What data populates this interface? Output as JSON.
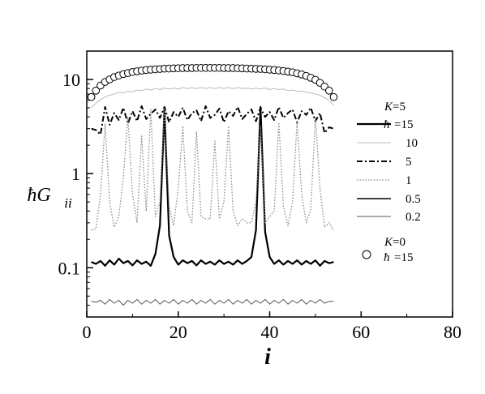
{
  "chart_data": {
    "type": "line",
    "xlabel": "i",
    "ylabel": "ħG",
    "ylabel_sub": "ii",
    "xlim": [
      0,
      80
    ],
    "ylim": [
      0.03,
      20
    ],
    "yscale": "log",
    "xticks": [
      0,
      20,
      40,
      60,
      80
    ],
    "xtick_labels": [
      "0",
      "20",
      "40",
      "60",
      "80"
    ],
    "yticks": [
      0.1,
      1,
      10
    ],
    "ytick_labels": [
      "0.1",
      "1",
      "10"
    ],
    "grid": false,
    "legend_title": "K=5",
    "legend_title_italic": "K",
    "legend_title_rest": "=5",
    "legend_hbar_prefix": "ħ",
    "legend_second_title_italic": "K",
    "legend_second_title_rest": "=0",
    "legend_second_label": "=15",
    "series": [
      {
        "name": "=15",
        "legend_label": "=15",
        "style": "solid-thick",
        "color": "#000000",
        "x": [
          1,
          2,
          3,
          4,
          5,
          6,
          7,
          8,
          9,
          10,
          11,
          12,
          13,
          14,
          15,
          16,
          17,
          18,
          19,
          20,
          21,
          22,
          23,
          24,
          25,
          26,
          27,
          28,
          29,
          30,
          31,
          32,
          33,
          34,
          35,
          36,
          37,
          38,
          39,
          40,
          41,
          42,
          43,
          44,
          45,
          46,
          47,
          48,
          49,
          50,
          51,
          52,
          53,
          54
        ],
        "y": [
          0.115,
          0.11,
          0.118,
          0.105,
          0.12,
          0.108,
          0.125,
          0.112,
          0.118,
          0.106,
          0.12,
          0.11,
          0.116,
          0.105,
          0.14,
          0.28,
          4.9,
          0.22,
          0.13,
          0.108,
          0.12,
          0.112,
          0.118,
          0.106,
          0.12,
          0.11,
          0.116,
          0.108,
          0.12,
          0.11,
          0.116,
          0.108,
          0.12,
          0.11,
          0.118,
          0.13,
          0.25,
          5.1,
          0.24,
          0.13,
          0.11,
          0.12,
          0.108,
          0.118,
          0.11,
          0.12,
          0.108,
          0.118,
          0.11,
          0.12,
          0.105,
          0.118,
          0.112,
          0.115
        ]
      },
      {
        "name": "10",
        "legend_label": "10",
        "style": "solid-thin-gray",
        "color": "#bbbbbb",
        "x": [
          1,
          2,
          3,
          4,
          5,
          6,
          7,
          8,
          9,
          10,
          11,
          12,
          13,
          14,
          15,
          16,
          17,
          18,
          19,
          20,
          21,
          22,
          23,
          24,
          25,
          26,
          27,
          28,
          29,
          30,
          31,
          32,
          33,
          34,
          35,
          36,
          37,
          38,
          39,
          40,
          41,
          42,
          43,
          44,
          45,
          46,
          47,
          48,
          49,
          50,
          51,
          52,
          53,
          54
        ],
        "y": [
          5.0,
          5.6,
          6.1,
          6.5,
          6.8,
          7.0,
          7.3,
          7.2,
          7.5,
          7.4,
          7.7,
          7.6,
          7.9,
          7.7,
          8.0,
          7.8,
          8.1,
          7.9,
          8.1,
          7.9,
          8.2,
          8.0,
          8.2,
          8.0,
          8.2,
          8.0,
          8.2,
          8.0,
          8.2,
          8.0,
          8.2,
          8.0,
          8.2,
          8.0,
          8.1,
          7.9,
          8.1,
          7.9,
          8.1,
          7.8,
          8.0,
          7.8,
          7.9,
          7.6,
          7.7,
          7.5,
          7.5,
          7.3,
          7.2,
          7.0,
          6.8,
          6.4,
          6.0,
          5.3
        ]
      },
      {
        "name": "5",
        "legend_label": "5",
        "style": "dashdot",
        "color": "#000000",
        "x": [
          1,
          2,
          3,
          4,
          5,
          6,
          7,
          8,
          9,
          10,
          11,
          12,
          13,
          14,
          15,
          16,
          17,
          18,
          19,
          20,
          21,
          22,
          23,
          24,
          25,
          26,
          27,
          28,
          29,
          30,
          31,
          32,
          33,
          34,
          35,
          36,
          37,
          38,
          39,
          40,
          41,
          42,
          43,
          44,
          45,
          46,
          47,
          48,
          49,
          50,
          51,
          52,
          53,
          54
        ],
        "y": [
          3.0,
          2.9,
          2.6,
          5.1,
          3.3,
          4.4,
          3.7,
          5.0,
          3.4,
          4.6,
          3.6,
          5.2,
          3.8,
          4.3,
          4.8,
          3.9,
          5.1,
          3.5,
          4.5,
          4.0,
          5.0,
          3.7,
          4.4,
          4.7,
          3.6,
          5.2,
          3.9,
          4.2,
          4.9,
          3.5,
          4.6,
          4.1,
          5.1,
          3.8,
          4.3,
          4.8,
          3.6,
          5.0,
          4.0,
          4.5,
          3.7,
          5.1,
          3.9,
          4.4,
          4.8,
          3.5,
          4.6,
          4.2,
          5.0,
          3.6,
          4.4,
          2.7,
          3.1,
          3.0
        ]
      },
      {
        "name": "1",
        "legend_label": "1",
        "style": "dotted",
        "color": "#888888",
        "x": [
          1,
          2,
          3,
          4,
          5,
          6,
          7,
          8,
          9,
          10,
          11,
          12,
          13,
          14,
          15,
          16,
          17,
          18,
          19,
          20,
          21,
          22,
          23,
          24,
          25,
          26,
          27,
          28,
          29,
          30,
          31,
          32,
          33,
          34,
          35,
          36,
          37,
          38,
          39,
          40,
          41,
          42,
          43,
          44,
          45,
          46,
          47,
          48,
          49,
          50,
          51,
          52,
          53,
          54
        ],
        "y": [
          0.25,
          0.26,
          0.6,
          3.4,
          0.5,
          0.27,
          0.35,
          0.9,
          4.0,
          0.6,
          0.3,
          2.5,
          0.4,
          4.8,
          0.35,
          0.5,
          5.0,
          0.45,
          0.28,
          0.7,
          3.2,
          0.4,
          0.3,
          2.8,
          0.35,
          0.33,
          0.33,
          2.2,
          0.33,
          0.5,
          3.2,
          0.4,
          0.28,
          0.33,
          0.3,
          0.3,
          0.5,
          3.2,
          0.3,
          0.35,
          0.4,
          3.5,
          0.45,
          0.28,
          0.5,
          3.6,
          0.6,
          0.3,
          0.42,
          4.0,
          0.7,
          0.27,
          0.3,
          0.25
        ]
      },
      {
        "name": "0.5",
        "legend_label": "0.5",
        "style": "solid",
        "color": "#000000",
        "x": [],
        "y": []
      },
      {
        "name": "0.2",
        "legend_label": "0.2",
        "style": "solid-thin",
        "color": "#555555",
        "x": [
          1,
          2,
          3,
          4,
          5,
          6,
          7,
          8,
          9,
          10,
          11,
          12,
          13,
          14,
          15,
          16,
          17,
          18,
          19,
          20,
          21,
          22,
          23,
          24,
          25,
          26,
          27,
          28,
          29,
          30,
          31,
          32,
          33,
          34,
          35,
          36,
          37,
          38,
          39,
          40,
          41,
          42,
          43,
          44,
          45,
          46,
          47,
          48,
          49,
          50,
          51,
          52,
          53,
          54
        ],
        "y": [
          0.044,
          0.043,
          0.045,
          0.041,
          0.046,
          0.042,
          0.045,
          0.04,
          0.045,
          0.042,
          0.046,
          0.041,
          0.045,
          0.042,
          0.046,
          0.041,
          0.045,
          0.042,
          0.046,
          0.041,
          0.045,
          0.042,
          0.046,
          0.041,
          0.045,
          0.042,
          0.046,
          0.041,
          0.045,
          0.042,
          0.046,
          0.041,
          0.045,
          0.042,
          0.046,
          0.041,
          0.045,
          0.042,
          0.046,
          0.041,
          0.045,
          0.042,
          0.046,
          0.041,
          0.045,
          0.042,
          0.046,
          0.041,
          0.045,
          0.042,
          0.046,
          0.042,
          0.044,
          0.044
        ]
      },
      {
        "name": "=15",
        "legend_label": "=15",
        "style": "circles",
        "color": "#000000",
        "x": [
          1,
          2,
          3,
          4,
          5,
          6,
          7,
          8,
          9,
          10,
          11,
          12,
          13,
          14,
          15,
          16,
          17,
          18,
          19,
          20,
          21,
          22,
          23,
          24,
          25,
          26,
          27,
          28,
          29,
          30,
          31,
          32,
          33,
          34,
          35,
          36,
          37,
          38,
          39,
          40,
          41,
          42,
          43,
          44,
          45,
          46,
          47,
          48,
          49,
          50,
          51,
          52,
          53,
          54
        ],
        "y": [
          6.5,
          7.6,
          8.6,
          9.4,
          10.0,
          10.6,
          11.0,
          11.4,
          11.7,
          12.0,
          12.2,
          12.4,
          12.6,
          12.7,
          12.8,
          12.9,
          13.0,
          13.05,
          13.1,
          13.15,
          13.2,
          13.2,
          13.2,
          13.25,
          13.25,
          13.25,
          13.25,
          13.25,
          13.25,
          13.2,
          13.2,
          13.2,
          13.15,
          13.1,
          13.05,
          13.0,
          12.95,
          12.9,
          12.8,
          12.7,
          12.6,
          12.45,
          12.3,
          12.1,
          11.9,
          11.6,
          11.3,
          10.9,
          10.4,
          9.9,
          9.2,
          8.4,
          7.6,
          6.5
        ]
      }
    ]
  }
}
